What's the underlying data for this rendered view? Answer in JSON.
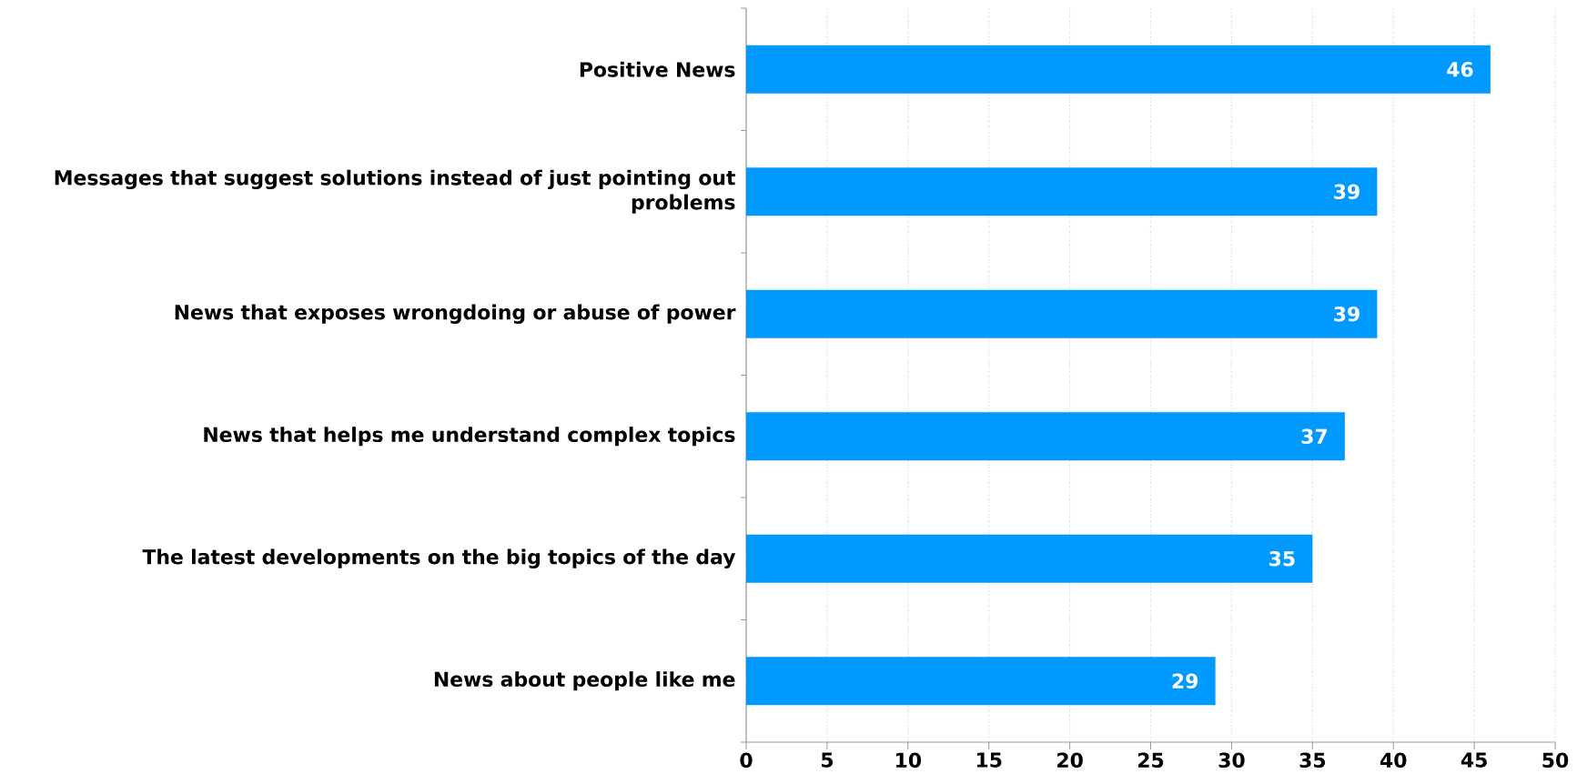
{
  "chart_data": {
    "type": "bar",
    "orientation": "horizontal",
    "categories": [
      "Positive News",
      "Messages that suggest solutions instead of just pointing out problems",
      "News that exposes wrongdoing or abuse of power",
      "News that helps me understand complex topics",
      "The latest developments on the big topics of the day",
      "News about people like me"
    ],
    "values": [
      46,
      39,
      39,
      37,
      35,
      29
    ],
    "color": "#0099ff",
    "xlim": [
      0,
      50
    ],
    "xticks": [
      0,
      5,
      10,
      15,
      20,
      25,
      30,
      35,
      40,
      45,
      50
    ],
    "grid": "x",
    "data_labels": true
  }
}
